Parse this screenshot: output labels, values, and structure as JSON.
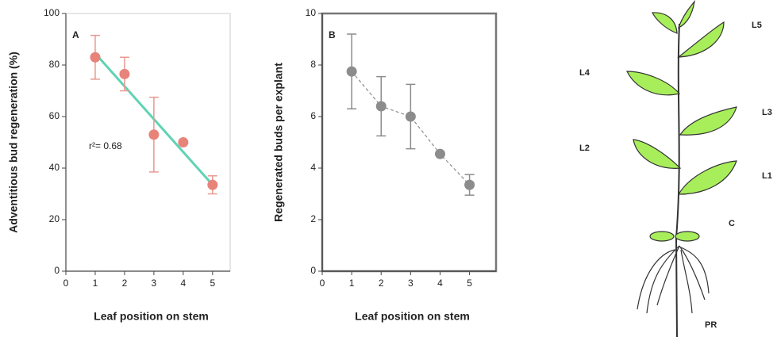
{
  "chart_data": [
    {
      "type": "scatter",
      "panel": "A",
      "x": [
        1,
        2,
        3,
        4,
        5
      ],
      "values": [
        83,
        76.5,
        53,
        50,
        33.5
      ],
      "errors": [
        8.5,
        6.5,
        14.5,
        0,
        3.5
      ],
      "color": "#e8837a",
      "error_color": "#e89a92",
      "trendline": {
        "x": [
          1,
          5
        ],
        "values": [
          84.5,
          33.5
        ],
        "color": "#5fd3b4"
      },
      "annotation": "r²= 0.68",
      "xlabel": "Leaf position on stem",
      "ylabel": "Adventitious bud regeneration (%)",
      "xlim": [
        0,
        5.6
      ],
      "ylim": [
        0,
        100
      ],
      "xticks": [
        0,
        1,
        2,
        3,
        4,
        5
      ],
      "yticks": [
        0,
        20,
        40,
        60,
        80,
        100
      ]
    },
    {
      "type": "line",
      "panel": "B",
      "x": [
        1,
        2,
        3,
        4,
        5
      ],
      "values": [
        7.75,
        6.4,
        6.0,
        4.55,
        3.35
      ],
      "errors": [
        1.45,
        1.15,
        1.25,
        0,
        0.4
      ],
      "color": "#8c8c8c",
      "error_color": "#8c8c8c",
      "dashed": true,
      "xlabel": "Leaf position on stem",
      "ylabel": "Regenerated buds per explant",
      "xlim": [
        0,
        5.9
      ],
      "ylim": [
        0,
        10
      ],
      "xticks": [
        0,
        1,
        2,
        3,
        4,
        5
      ],
      "yticks": [
        0,
        2,
        4,
        6,
        8,
        10
      ]
    }
  ],
  "diagram": {
    "labels": [
      "L5",
      "L4",
      "L3",
      "L2",
      "L1",
      "C",
      "PR"
    ]
  }
}
